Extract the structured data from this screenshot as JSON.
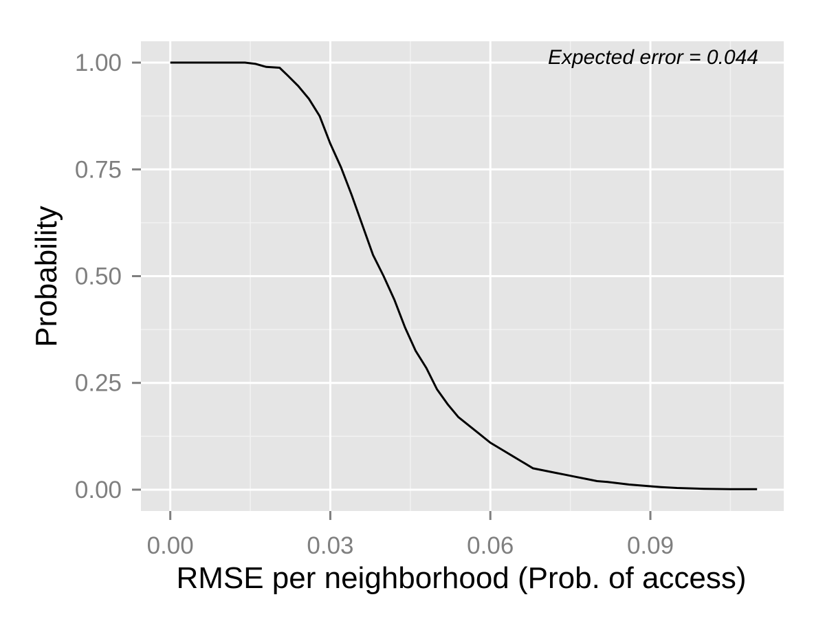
{
  "chart_data": {
    "type": "line",
    "xlabel": "RMSE per neighborhood (Prob. of access)",
    "ylabel": "Probability",
    "xlim": [
      -0.0055,
      0.115
    ],
    "ylim": [
      -0.05,
      1.05
    ],
    "x_ticks": [
      0.0,
      0.03,
      0.06,
      0.09
    ],
    "x_tick_labels": [
      "0.00",
      "0.03",
      "0.06",
      "0.09"
    ],
    "y_ticks": [
      0.0,
      0.25,
      0.5,
      0.75,
      1.0
    ],
    "y_tick_labels": [
      "0.00",
      "0.25",
      "0.50",
      "0.75",
      "1.00"
    ],
    "grid": true,
    "annotation": "Expected error = 0.044",
    "colors": {
      "panel": "#e5e5e5",
      "grid": "#ffffff",
      "line": "#000000"
    },
    "series": [
      {
        "x": [
          0.0,
          0.005,
          0.01,
          0.014,
          0.016,
          0.018,
          0.0205,
          0.022,
          0.024,
          0.026,
          0.028,
          0.03,
          0.032,
          0.034,
          0.036,
          0.038,
          0.04,
          0.042,
          0.044,
          0.046,
          0.048,
          0.05,
          0.052,
          0.054,
          0.056,
          0.058,
          0.06,
          0.062,
          0.064,
          0.066,
          0.068,
          0.07,
          0.072,
          0.074,
          0.076,
          0.078,
          0.08,
          0.082,
          0.084,
          0.086,
          0.088,
          0.09,
          0.092,
          0.095,
          0.1,
          0.105,
          0.11
        ],
        "y": [
          1.0,
          1.0,
          1.0,
          1.0,
          0.997,
          0.99,
          0.988,
          0.97,
          0.945,
          0.915,
          0.875,
          0.81,
          0.755,
          0.69,
          0.62,
          0.55,
          0.5,
          0.445,
          0.38,
          0.325,
          0.285,
          0.235,
          0.2,
          0.17,
          0.15,
          0.13,
          0.11,
          0.095,
          0.08,
          0.065,
          0.05,
          0.045,
          0.04,
          0.035,
          0.03,
          0.025,
          0.02,
          0.018,
          0.015,
          0.012,
          0.01,
          0.008,
          0.006,
          0.004,
          0.002,
          0.001,
          0.001
        ]
      }
    ]
  }
}
